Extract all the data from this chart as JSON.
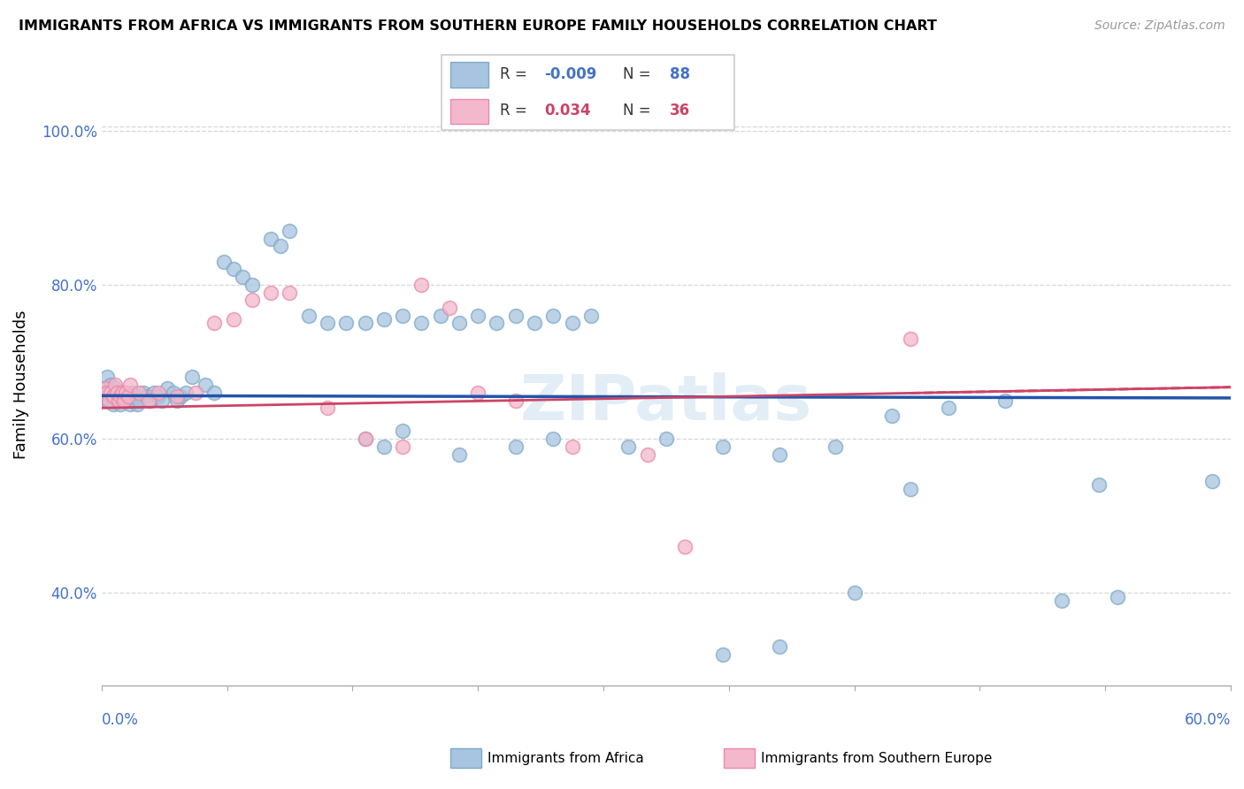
{
  "title": "IMMIGRANTS FROM AFRICA VS IMMIGRANTS FROM SOUTHERN EUROPE FAMILY HOUSEHOLDS CORRELATION CHART",
  "source": "Source: ZipAtlas.com",
  "ylabel": "Family Households",
  "africa_R": -0.009,
  "africa_N": 88,
  "se_R": 0.034,
  "se_N": 36,
  "africa_color": "#a8c4e0",
  "africa_edge_color": "#7aaac8",
  "se_color": "#f4b8cc",
  "se_edge_color": "#e88aa8",
  "africa_line_color": "#2255aa",
  "se_line_color": "#cc4466",
  "watermark": "ZIPatlas",
  "xlim": [
    0.0,
    0.6
  ],
  "ylim": [
    0.28,
    1.06
  ],
  "yticks": [
    0.4,
    0.6,
    0.8,
    1.0
  ],
  "ytick_labels": [
    "40.0%",
    "60.0%",
    "80.0%",
    "100.0%"
  ],
  "africa_x": [
    0.001,
    0.002,
    0.003,
    0.003,
    0.004,
    0.004,
    0.005,
    0.005,
    0.006,
    0.006,
    0.007,
    0.007,
    0.008,
    0.008,
    0.009,
    0.01,
    0.01,
    0.011,
    0.011,
    0.012,
    0.013,
    0.013,
    0.014,
    0.015,
    0.016,
    0.017,
    0.018,
    0.019,
    0.02,
    0.022,
    0.024,
    0.026,
    0.028,
    0.03,
    0.032,
    0.035,
    0.038,
    0.04,
    0.042,
    0.045,
    0.048,
    0.055,
    0.06,
    0.065,
    0.07,
    0.075,
    0.08,
    0.09,
    0.095,
    0.1,
    0.11,
    0.12,
    0.13,
    0.14,
    0.15,
    0.16,
    0.17,
    0.18,
    0.19,
    0.2,
    0.21,
    0.22,
    0.23,
    0.24,
    0.25,
    0.26,
    0.14,
    0.15,
    0.16,
    0.19,
    0.22,
    0.24,
    0.28,
    0.3,
    0.33,
    0.36,
    0.39,
    0.42,
    0.45,
    0.48,
    0.51,
    0.54,
    0.33,
    0.36,
    0.4,
    0.43,
    0.53,
    0.59
  ],
  "africa_y": [
    0.66,
    0.66,
    0.65,
    0.68,
    0.665,
    0.65,
    0.66,
    0.67,
    0.655,
    0.645,
    0.66,
    0.665,
    0.65,
    0.66,
    0.655,
    0.66,
    0.645,
    0.65,
    0.66,
    0.655,
    0.66,
    0.65,
    0.655,
    0.645,
    0.66,
    0.65,
    0.655,
    0.645,
    0.65,
    0.66,
    0.655,
    0.65,
    0.66,
    0.655,
    0.65,
    0.665,
    0.66,
    0.65,
    0.655,
    0.66,
    0.68,
    0.67,
    0.66,
    0.83,
    0.82,
    0.81,
    0.8,
    0.86,
    0.85,
    0.87,
    0.76,
    0.75,
    0.75,
    0.75,
    0.755,
    0.76,
    0.75,
    0.76,
    0.75,
    0.76,
    0.75,
    0.76,
    0.75,
    0.76,
    0.75,
    0.76,
    0.6,
    0.59,
    0.61,
    0.58,
    0.59,
    0.6,
    0.59,
    0.6,
    0.59,
    0.58,
    0.59,
    0.63,
    0.64,
    0.65,
    0.39,
    0.395,
    0.32,
    0.33,
    0.4,
    0.535,
    0.54,
    0.545
  ],
  "se_x": [
    0.001,
    0.002,
    0.003,
    0.004,
    0.005,
    0.006,
    0.007,
    0.008,
    0.009,
    0.01,
    0.011,
    0.012,
    0.013,
    0.014,
    0.015,
    0.02,
    0.025,
    0.03,
    0.04,
    0.05,
    0.06,
    0.07,
    0.08,
    0.09,
    0.1,
    0.12,
    0.14,
    0.16,
    0.17,
    0.185,
    0.2,
    0.22,
    0.25,
    0.29,
    0.31,
    0.43
  ],
  "se_y": [
    0.66,
    0.665,
    0.66,
    0.65,
    0.66,
    0.655,
    0.67,
    0.66,
    0.65,
    0.655,
    0.66,
    0.65,
    0.66,
    0.655,
    0.67,
    0.66,
    0.65,
    0.66,
    0.655,
    0.66,
    0.75,
    0.755,
    0.78,
    0.79,
    0.79,
    0.64,
    0.6,
    0.59,
    0.8,
    0.77,
    0.66,
    0.65,
    0.59,
    0.58,
    0.46,
    0.73
  ]
}
